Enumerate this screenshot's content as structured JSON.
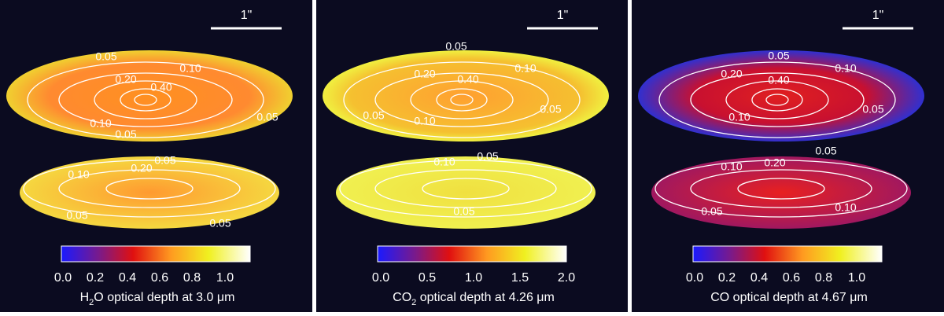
{
  "panels": [
    {
      "scale_label": "1\"",
      "colorbar_ticks": [
        "0.0",
        "0.2",
        "0.4",
        "0.6",
        "0.8",
        "1.0"
      ],
      "caption": {
        "pre": "H",
        "sub": "2",
        "post": "O optical depth at 3.0 μm"
      },
      "contour_labels": [
        "0.05",
        "0.10",
        "0.20",
        "0.40",
        "0.10",
        "0.05",
        "0.05",
        "0.05",
        "0.10",
        "0.20",
        "0.05",
        "0.05"
      ]
    },
    {
      "scale_label": "1\"",
      "colorbar_ticks": [
        "0.0",
        "0.5",
        "1.0",
        "1.5",
        "2.0"
      ],
      "caption": {
        "pre": "CO",
        "sub": "2",
        "post": " optical depth at 4.26 μm"
      },
      "contour_labels": [
        "0.05",
        "0.20",
        "0.40",
        "0.10",
        "0.05",
        "0.10",
        "0.05",
        "0.05",
        "0.10",
        "0.05"
      ]
    },
    {
      "scale_label": "1\"",
      "colorbar_ticks": [
        "0.0",
        "0.2",
        "0.4",
        "0.6",
        "0.8",
        "1.0"
      ],
      "caption": {
        "pre": "CO optical depth at 4.67 μm"
      },
      "contour_labels": [
        "0.05",
        "0.10",
        "0.20",
        "0.40",
        "0.10",
        "0.05",
        "0.05",
        "0.10",
        "0.20",
        "0.05",
        "0.10"
      ]
    }
  ]
}
